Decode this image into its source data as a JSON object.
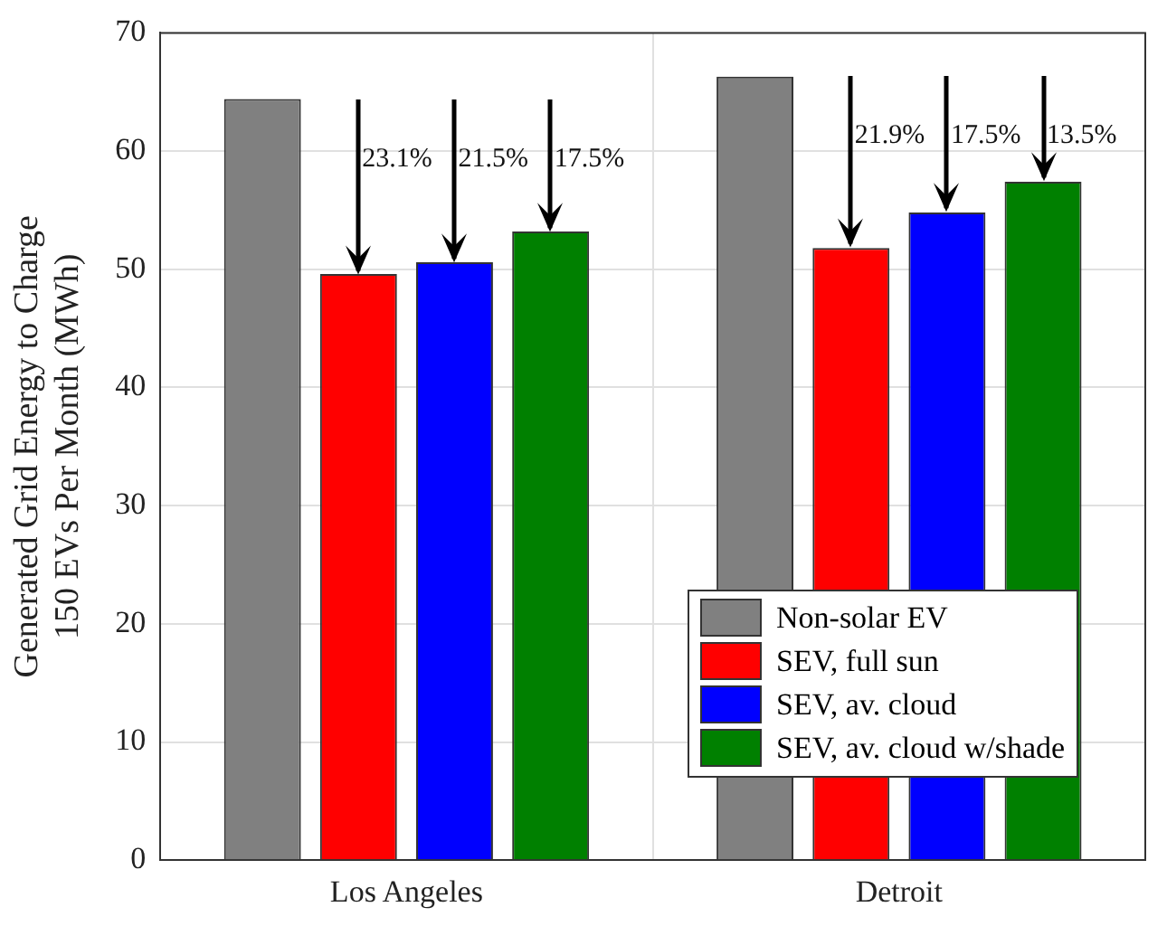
{
  "chart_data": {
    "type": "bar",
    "ylabel": "Generated Grid Energy to Charge\n150 EVs Per Month (MWh)",
    "categories": [
      "Los Angeles",
      "Detroit"
    ],
    "series": [
      {
        "name": "Non-solar EV",
        "color": "#808080",
        "values": [
          64.4,
          66.3
        ]
      },
      {
        "name": "SEV, full sun",
        "color": "#ff0000",
        "values": [
          49.6,
          51.8
        ]
      },
      {
        "name": "SEV, av. cloud",
        "color": "#0000ff",
        "values": [
          50.6,
          54.8
        ]
      },
      {
        "name": "SEV, av. cloud w/shade",
        "color": "#008000",
        "values": [
          53.2,
          57.4
        ]
      }
    ],
    "ylim": [
      0,
      70
    ],
    "yticks": [
      0,
      10,
      20,
      30,
      40,
      50,
      60,
      70
    ],
    "grid": true,
    "legend": "bottom right",
    "annotations": [
      "23.1%",
      "21.5%",
      "17.5%",
      "21.9%",
      "17.5%",
      "13.5%"
    ]
  }
}
